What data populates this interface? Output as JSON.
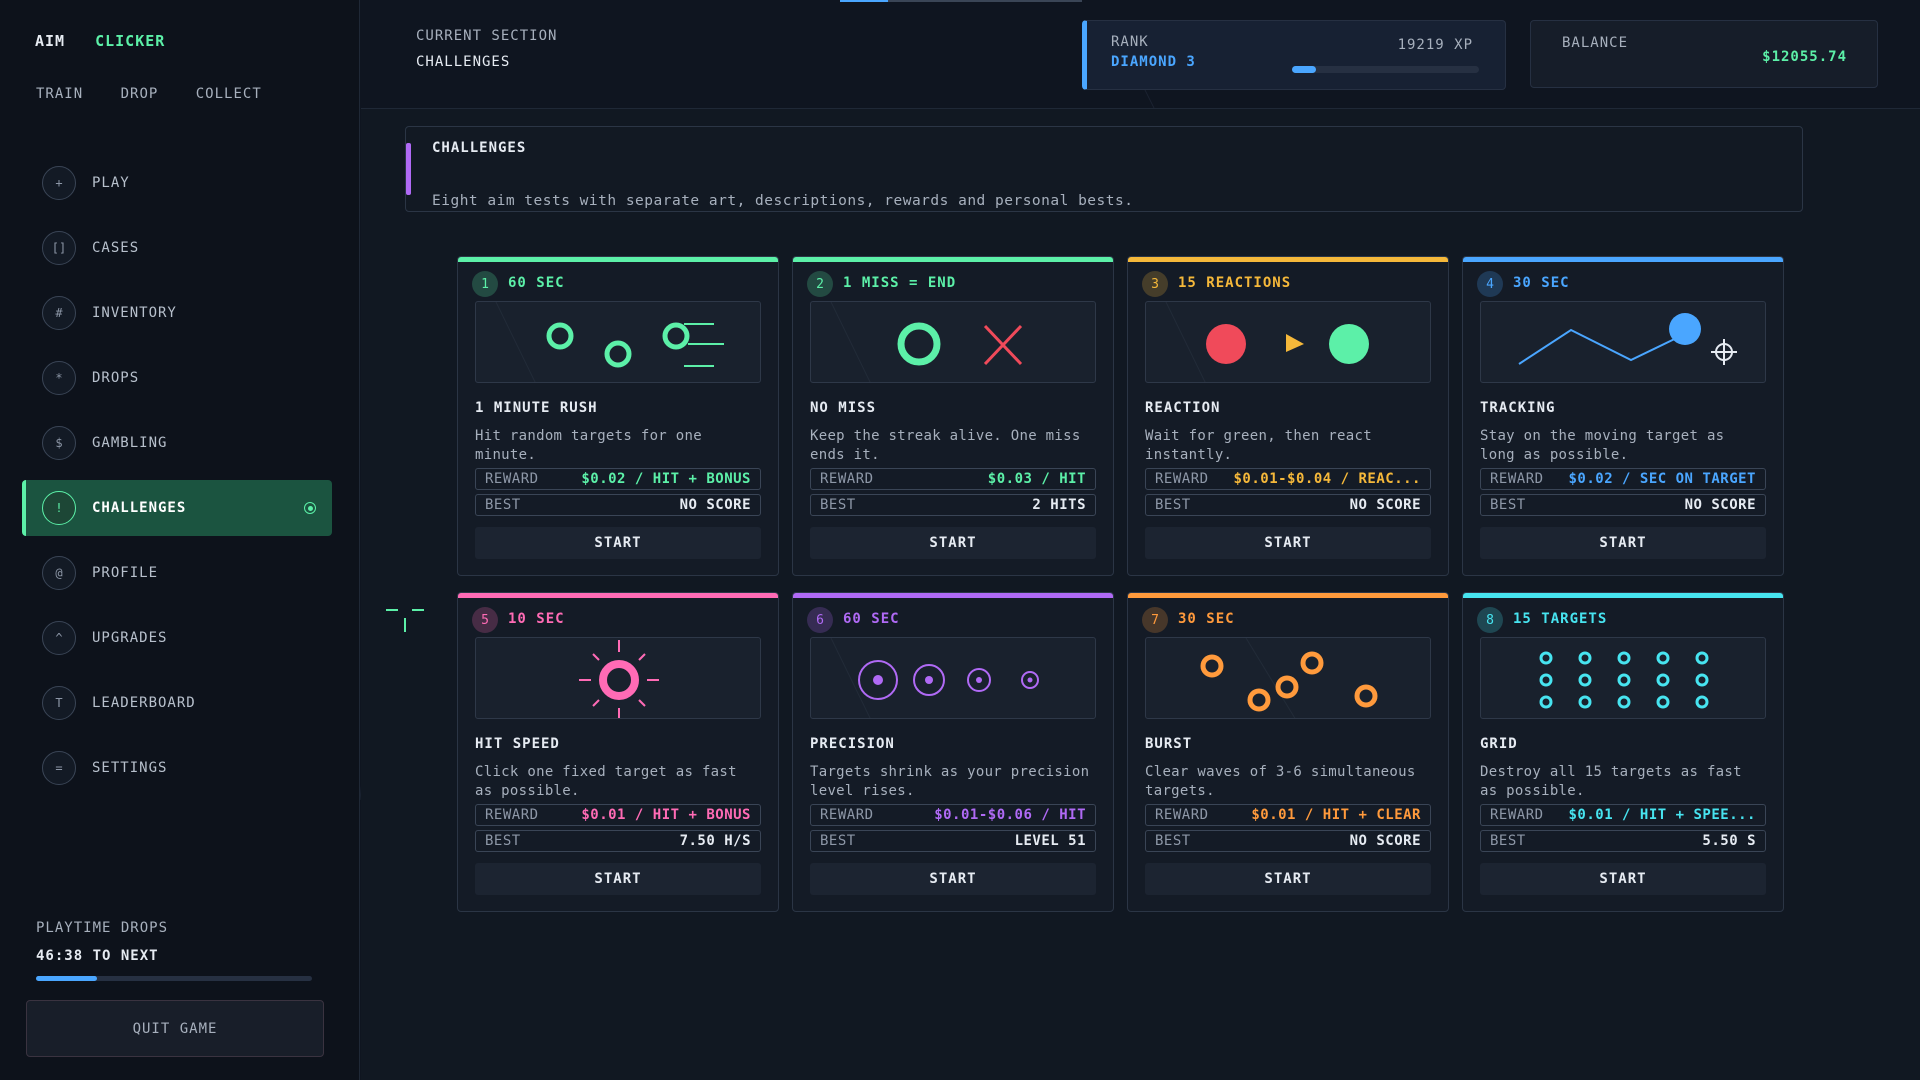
{
  "brand": {
    "left": "AIM",
    "right": "CLICKER"
  },
  "subnav": [
    "TRAIN",
    "DROP",
    "COLLECT"
  ],
  "nav": [
    {
      "icon": "+",
      "label": "PLAY",
      "active": false
    },
    {
      "icon": "[]",
      "label": "CASES",
      "active": false
    },
    {
      "icon": "#",
      "label": "INVENTORY",
      "active": false
    },
    {
      "icon": "*",
      "label": "DROPS",
      "active": false
    },
    {
      "icon": "$",
      "label": "GAMBLING",
      "active": false
    },
    {
      "icon": "!",
      "label": "CHALLENGES",
      "active": true
    },
    {
      "icon": "@",
      "label": "PROFILE",
      "active": false
    },
    {
      "icon": "^",
      "label": "UPGRADES",
      "active": false
    },
    {
      "icon": "T",
      "label": "LEADERBOARD",
      "active": false
    },
    {
      "icon": "=",
      "label": "SETTINGS",
      "active": false
    }
  ],
  "drops": {
    "title": "PLAYTIME DROPS",
    "value": "46:38 TO NEXT",
    "progress": 0.22
  },
  "quit_label": "QUIT GAME",
  "section": {
    "title": "CURRENT SECTION",
    "value": "CHALLENGES"
  },
  "top_progress": 0.2,
  "rank": {
    "title": "RANK",
    "value": "DIAMOND 3",
    "xp": "19219 XP",
    "progress": 0.13
  },
  "balance": {
    "title": "BALANCE",
    "value": "$12055.74"
  },
  "info": {
    "title": "CHALLENGES",
    "desc": "Eight aim tests with separate art, descriptions, rewards and personal bests."
  },
  "labels": {
    "reward": "REWARD",
    "best": "BEST",
    "start": "START"
  },
  "colors": {
    "green": "#5cf0a8",
    "yellow": "#f5b83a",
    "blue": "#4aa6ff",
    "pink": "#ff6bb5",
    "purple": "#b06af5",
    "orange": "#ff9a3c",
    "cyan": "#47e4f0",
    "red": "#f04a5a"
  },
  "cards": [
    {
      "num": "1",
      "tag": "60 SEC",
      "name": "1 MINUTE RUSH",
      "desc": "Hit random targets for one minute.",
      "reward": "$0.02 / HIT + BONUS",
      "best": "NO SCORE",
      "color": "#5cf0a8",
      "art": "rush"
    },
    {
      "num": "2",
      "tag": "1 MISS = END",
      "name": "NO MISS",
      "desc": "Keep the streak alive. One miss ends it.",
      "reward": "$0.03 / HIT",
      "best": "2 HITS",
      "color": "#5cf0a8",
      "art": "nomiss"
    },
    {
      "num": "3",
      "tag": "15 REACTIONS",
      "name": "REACTION",
      "desc": "Wait for green, then react instantly.",
      "reward": "$0.01-$0.04 / REAC...",
      "best": "NO SCORE",
      "color": "#f5b83a",
      "art": "reaction"
    },
    {
      "num": "4",
      "tag": "30 SEC",
      "name": "TRACKING",
      "desc": "Stay on the moving target as long as possible.",
      "reward": "$0.02 / SEC ON TARGET",
      "best": "NO SCORE",
      "color": "#4aa6ff",
      "art": "tracking"
    },
    {
      "num": "5",
      "tag": "10 SEC",
      "name": "HIT SPEED",
      "desc": "Click one fixed target as fast as possible.",
      "reward": "$0.01 / HIT + BONUS",
      "best": "7.50 H/S",
      "color": "#ff6bb5",
      "art": "speed"
    },
    {
      "num": "6",
      "tag": "60 SEC",
      "name": "PRECISION",
      "desc": "Targets shrink as your precision level rises.",
      "reward": "$0.01-$0.06 / HIT",
      "best": "LEVEL 51",
      "color": "#b06af5",
      "art": "precision"
    },
    {
      "num": "7",
      "tag": "30 SEC",
      "name": "BURST",
      "desc": "Clear waves of 3-6 simultaneous targets.",
      "reward": "$0.01 / HIT + CLEAR",
      "best": "NO SCORE",
      "color": "#ff9a3c",
      "art": "burst"
    },
    {
      "num": "8",
      "tag": "15 TARGETS",
      "name": "GRID",
      "desc": "Destroy all 15 targets as fast as possible.",
      "reward": "$0.01 / HIT + SPEE...",
      "best": "5.50 S",
      "color": "#47e4f0",
      "art": "grid"
    }
  ]
}
